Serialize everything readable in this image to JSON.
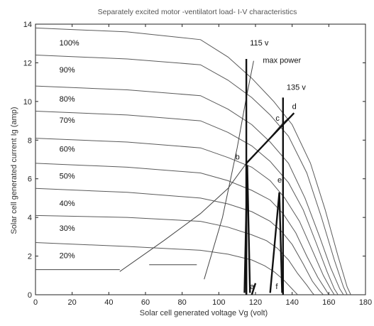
{
  "chart_data": {
    "type": "line",
    "title": "Separately excited motor -ventilatort load- I-V characteristics",
    "xlabel": "Solar cell generated voltage Vg (volt)",
    "ylabel": "Solar cell generated current Ig  (amp)",
    "xlim": [
      0,
      180
    ],
    "ylim": [
      0,
      14
    ],
    "xticks": [
      0,
      20,
      40,
      60,
      80,
      100,
      120,
      140,
      160,
      180
    ],
    "yticks": [
      0,
      2,
      4,
      6,
      8,
      10,
      12,
      14
    ],
    "grid": false,
    "colors": {
      "curve": "#5a5a5a",
      "bold": "#111111",
      "load": "#444444"
    },
    "series": [
      {
        "name": "100%",
        "label_at": [
          13,
          12.9
        ],
        "points": [
          [
            0,
            13.8
          ],
          [
            50,
            13.6
          ],
          [
            90,
            13.2
          ],
          [
            105,
            12.3
          ],
          [
            118,
            11.2
          ],
          [
            130,
            10.0
          ],
          [
            140,
            8.8
          ],
          [
            150,
            6.8
          ],
          [
            158,
            4.4
          ],
          [
            165,
            2.0
          ],
          [
            170,
            0.4
          ],
          [
            172,
            0
          ]
        ]
      },
      {
        "name": "90%",
        "label_at": [
          13,
          11.5
        ],
        "points": [
          [
            0,
            12.4
          ],
          [
            50,
            12.2
          ],
          [
            90,
            11.9
          ],
          [
            105,
            11.1
          ],
          [
            118,
            10.2
          ],
          [
            128,
            9.3
          ],
          [
            138,
            8.2
          ],
          [
            148,
            6.3
          ],
          [
            156,
            4.0
          ],
          [
            163,
            1.8
          ],
          [
            168,
            0.4
          ],
          [
            170,
            0
          ]
        ]
      },
      {
        "name": "80%",
        "label_at": [
          13,
          10.0
        ],
        "points": [
          [
            0,
            10.8
          ],
          [
            50,
            10.6
          ],
          [
            90,
            10.3
          ],
          [
            105,
            9.6
          ],
          [
            118,
            8.8
          ],
          [
            128,
            7.9
          ],
          [
            138,
            6.8
          ],
          [
            147,
            5.0
          ],
          [
            155,
            3.0
          ],
          [
            161,
            1.4
          ],
          [
            166,
            0.3
          ],
          [
            168,
            0
          ]
        ]
      },
      {
        "name": "70%",
        "label_at": [
          13,
          8.9
        ],
        "points": [
          [
            0,
            9.5
          ],
          [
            50,
            9.3
          ],
          [
            90,
            9.0
          ],
          [
            105,
            8.4
          ],
          [
            118,
            7.7
          ],
          [
            128,
            6.9
          ],
          [
            138,
            5.8
          ],
          [
            146,
            4.4
          ],
          [
            153,
            2.7
          ],
          [
            159,
            1.2
          ],
          [
            163,
            0.3
          ],
          [
            165,
            0
          ]
        ]
      },
      {
        "name": "60%",
        "label_at": [
          13,
          7.4
        ],
        "points": [
          [
            0,
            8.1
          ],
          [
            50,
            7.9
          ],
          [
            90,
            7.6
          ],
          [
            105,
            7.1
          ],
          [
            118,
            6.6
          ],
          [
            128,
            5.9
          ],
          [
            136,
            5.0
          ],
          [
            144,
            3.8
          ],
          [
            151,
            2.3
          ],
          [
            157,
            1.0
          ],
          [
            161,
            0.3
          ],
          [
            163,
            0
          ]
        ]
      },
      {
        "name": "50%",
        "label_at": [
          13,
          6.0
        ],
        "points": [
          [
            0,
            6.8
          ],
          [
            50,
            6.6
          ],
          [
            90,
            6.3
          ],
          [
            105,
            5.9
          ],
          [
            118,
            5.4
          ],
          [
            128,
            4.9
          ],
          [
            135,
            4.2
          ],
          [
            142,
            3.2
          ],
          [
            148,
            2.0
          ],
          [
            154,
            0.9
          ],
          [
            158,
            0.3
          ],
          [
            160,
            0
          ]
        ]
      },
      {
        "name": "40%",
        "label_at": [
          13,
          4.6
        ],
        "points": [
          [
            0,
            5.5
          ],
          [
            50,
            5.3
          ],
          [
            90,
            5.0
          ],
          [
            105,
            4.7
          ],
          [
            118,
            4.3
          ],
          [
            128,
            3.8
          ],
          [
            134,
            3.3
          ],
          [
            140,
            2.6
          ],
          [
            146,
            1.6
          ],
          [
            151,
            0.7
          ],
          [
            155,
            0.2
          ],
          [
            157,
            0
          ]
        ]
      },
      {
        "name": "30%",
        "label_at": [
          13,
          3.3
        ],
        "points": [
          [
            0,
            4.1
          ],
          [
            50,
            4.0
          ],
          [
            90,
            3.8
          ],
          [
            105,
            3.5
          ],
          [
            118,
            3.1
          ],
          [
            126,
            2.8
          ],
          [
            132,
            2.4
          ],
          [
            138,
            1.8
          ],
          [
            143,
            1.1
          ],
          [
            148,
            0.5
          ],
          [
            151,
            0.1
          ],
          [
            152,
            0
          ]
        ]
      },
      {
        "name": "20%",
        "label_at": [
          13,
          1.9
        ],
        "points": [
          [
            0,
            2.7
          ],
          [
            50,
            2.5
          ],
          [
            90,
            2.3
          ],
          [
            105,
            2.1
          ],
          [
            118,
            1.8
          ],
          [
            125,
            1.5
          ],
          [
            130,
            1.2
          ],
          [
            135,
            0.8
          ],
          [
            139,
            0.4
          ],
          [
            142,
            0.1
          ],
          [
            143,
            0
          ]
        ]
      }
    ],
    "overlay_lines": [
      {
        "name": "max power",
        "points": [
          [
            92,
            0.8
          ],
          [
            102,
            4.0
          ],
          [
            110,
            7.6
          ],
          [
            115,
            10.2
          ],
          [
            119,
            12.1
          ]
        ]
      },
      {
        "name": "load",
        "points": [
          [
            46,
            1.2
          ],
          [
            70,
            2.8
          ],
          [
            90,
            4.2
          ],
          [
            105,
            5.5
          ],
          [
            115,
            6.8
          ],
          [
            125,
            7.8
          ],
          [
            135,
            8.9
          ],
          [
            140,
            9.3
          ]
        ]
      },
      {
        "name": "load-faint",
        "points": [
          [
            0,
            1.3
          ],
          [
            20,
            1.3
          ],
          [
            46,
            1.3
          ]
        ]
      },
      {
        "name": "load-faint-2",
        "points": [
          [
            62,
            1.55
          ],
          [
            88,
            1.55
          ]
        ]
      }
    ],
    "bold_lines": [
      {
        "name": "115 v",
        "points": [
          [
            115,
            0
          ],
          [
            115,
            12.2
          ]
        ]
      },
      {
        "name": "135 v",
        "points": [
          [
            135,
            0
          ],
          [
            135,
            10.2
          ]
        ]
      },
      {
        "name": "b-d",
        "points": [
          [
            115,
            6.8
          ],
          [
            141,
            9.4
          ]
        ]
      },
      {
        "name": "a-b",
        "points": [
          [
            115,
            0
          ],
          [
            115,
            6.8
          ]
        ]
      },
      {
        "name": "a-rise",
        "points": [
          [
            118,
            0
          ],
          [
            120,
            0.6
          ]
        ]
      },
      {
        "name": "b-spike",
        "points": [
          [
            114,
            0.1
          ],
          [
            115.5,
            6.7
          ],
          [
            117,
            0.1
          ]
        ]
      },
      {
        "name": "e-spike",
        "points": [
          [
            128,
            0.1
          ],
          [
            133,
            5.3
          ],
          [
            134.5,
            0.1
          ]
        ]
      }
    ],
    "annotations": [
      {
        "text": "115 v",
        "x": 117,
        "y": 12.9
      },
      {
        "text": "max power",
        "x": 124,
        "y": 12.0
      },
      {
        "text": "135 v",
        "x": 137,
        "y": 10.6
      },
      {
        "text": "c",
        "x": 131,
        "y": 9.0
      },
      {
        "text": "d",
        "x": 140,
        "y": 9.6
      },
      {
        "text": "b",
        "x": 109,
        "y": 7.0
      },
      {
        "text": "e",
        "x": 132,
        "y": 5.8
      },
      {
        "text": "a",
        "x": 117,
        "y": 0.3
      },
      {
        "text": "f",
        "x": 131,
        "y": 0.3
      }
    ]
  }
}
